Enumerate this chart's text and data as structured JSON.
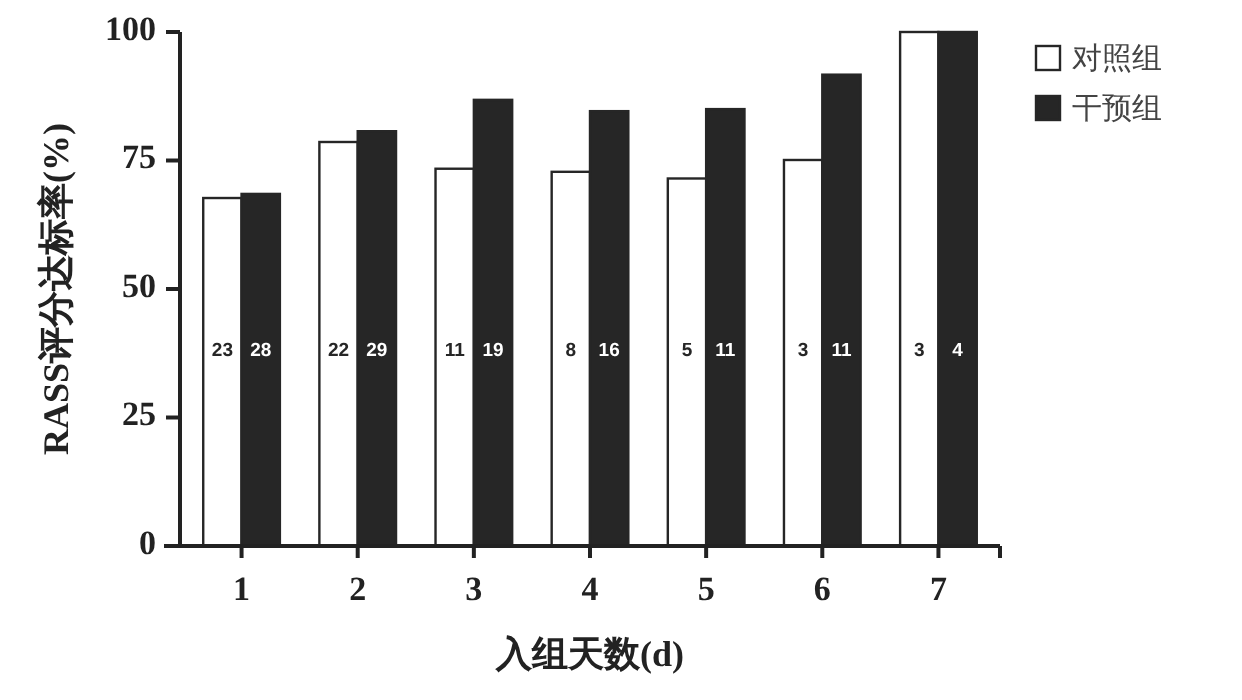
{
  "chart_data": {
    "type": "bar",
    "xlabel": "入组天数(d)",
    "ylabel": "RASS评分达标率(%)",
    "categories": [
      "1",
      "2",
      "3",
      "4",
      "5",
      "6",
      "7"
    ],
    "series": [
      {
        "name": "对照组",
        "color": "#ffffff",
        "values": [
          67.7,
          78.6,
          73.4,
          72.8,
          71.5,
          75.1,
          100
        ]
      },
      {
        "name": "干预组",
        "color": "#262626",
        "values": [
          68.5,
          80.7,
          86.8,
          84.6,
          85.0,
          91.7,
          100
        ]
      }
    ],
    "annotations": [
      "23",
      "28",
      "22",
      "29",
      "11",
      "19",
      "8",
      "16",
      "5",
      "11",
      "3",
      "11",
      "3",
      "4"
    ],
    "ylim": [
      0,
      100
    ],
    "yticks": [
      0,
      25,
      50,
      75,
      100
    ],
    "grid": false,
    "legend": "top right"
  }
}
